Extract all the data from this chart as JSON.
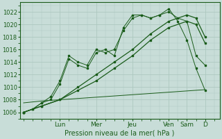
{
  "background_color": "#c8ddd8",
  "grid_color": "#adc8c0",
  "line_color": "#1a5c1a",
  "day_labels": [
    "Lun",
    "Mer",
    "Jeu",
    "Ven",
    "Sam",
    "D"
  ],
  "day_positions": [
    2,
    4,
    6,
    8,
    9,
    10
  ],
  "xlabel": "Pression niveau de la mer( hPa )",
  "ylim": [
    1005.0,
    1023.5
  ],
  "yticks": [
    1006,
    1008,
    1010,
    1012,
    1014,
    1016,
    1018,
    1020,
    1022
  ],
  "xlim": [
    -0.2,
    10.8
  ],
  "series": [
    {
      "x": [
        0,
        0.5,
        1.0,
        1.5,
        2.0,
        2.5,
        3.0,
        3.5,
        4.0,
        4.5,
        5.0,
        5.5,
        6.0,
        6.5,
        7.0,
        7.5,
        8.0,
        8.5,
        9.0,
        9.5,
        10.0
      ],
      "y": [
        1006,
        1006.5,
        1007.5,
        1008.5,
        1011.0,
        1015.0,
        1014.0,
        1013.5,
        1016.0,
        1015.5,
        1016.0,
        1019.0,
        1021.0,
        1021.5,
        1021.0,
        1021.5,
        1022.0,
        1021.0,
        1020.5,
        1015.0,
        1013.5
      ]
    },
    {
      "x": [
        0,
        0.5,
        1.0,
        1.5,
        2.0,
        2.5,
        3.0,
        3.5,
        4.0,
        4.5,
        5.0,
        5.5,
        6.0,
        6.5,
        7.0,
        7.5,
        8.0,
        8.5,
        9.0,
        9.5,
        10.0
      ],
      "y": [
        1006,
        1006.5,
        1007.5,
        1008.0,
        1010.5,
        1014.5,
        1013.5,
        1013.0,
        1015.5,
        1016.0,
        1015.0,
        1019.5,
        1021.5,
        1021.5,
        1021.0,
        1021.5,
        1022.5,
        1020.5,
        1017.5,
        1013.0,
        1009.5
      ]
    },
    {
      "x": [
        0,
        1.0,
        2.0,
        3.0,
        4.0,
        5.0,
        6.0,
        7.0,
        8.0,
        9.0,
        9.5,
        10.0
      ],
      "y": [
        1006,
        1007,
        1008,
        1010,
        1012,
        1014,
        1016,
        1018.5,
        1020.5,
        1021.5,
        1021.0,
        1018.0
      ]
    },
    {
      "x": [
        0,
        1.0,
        2.0,
        3.0,
        4.0,
        5.0,
        6.0,
        7.0,
        8.0,
        9.0,
        9.5,
        10.0
      ],
      "y": [
        1006,
        1007,
        1008,
        1009.5,
        1011,
        1013,
        1015,
        1017.5,
        1019.5,
        1020.5,
        1020.0,
        1017.0
      ]
    },
    {
      "x": [
        0,
        1.0,
        2.0,
        3.0,
        4.0,
        5.0,
        6.0,
        7.0,
        8.0,
        9.0,
        9.5,
        10.0
      ],
      "y": [
        1007.5,
        1007.8,
        1008.0,
        1008.2,
        1008.4,
        1008.6,
        1008.8,
        1009.0,
        1009.2,
        1009.4,
        1009.5,
        1009.6
      ]
    }
  ]
}
